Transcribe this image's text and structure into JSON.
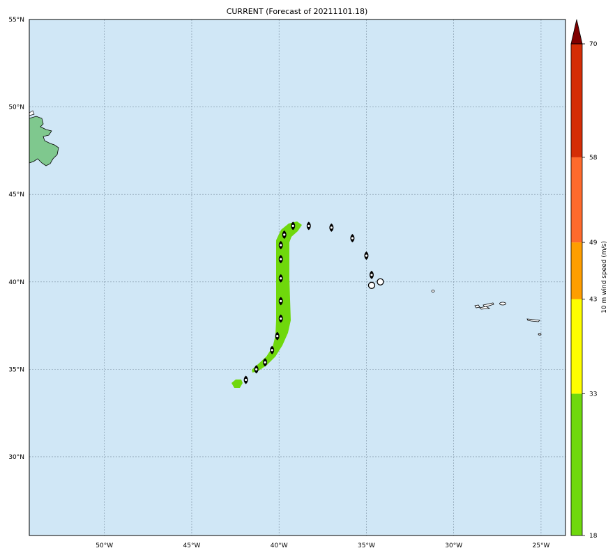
{
  "title": "CURRENT (Forecast of 20211101.18)",
  "colors": {
    "ocean": "#d0e7f6",
    "land": "#7fc88e",
    "swath": "#6fd80c",
    "grid": "#7a8fa0",
    "frame": "#000000"
  },
  "map": {
    "lon_range": [
      -54.3,
      -23.6
    ],
    "lat_range": [
      25.5,
      55
    ],
    "lon_ticks": [
      -50,
      -45,
      -40,
      -35,
      -30,
      -25
    ],
    "lat_ticks": [
      30,
      35,
      40,
      45,
      50,
      55
    ],
    "lon_tick_labels": [
      "50°W",
      "45°W",
      "40°W",
      "35°W",
      "30°W",
      "25°W"
    ],
    "lat_tick_labels": [
      "30°N",
      "35°N",
      "40°N",
      "45°N",
      "50°N",
      "55°N"
    ],
    "grid": true
  },
  "track": [
    {
      "lon": -41.9,
      "lat": 34.4,
      "symbol": "hurricane"
    },
    {
      "lon": -41.3,
      "lat": 35.0,
      "symbol": "hurricane"
    },
    {
      "lon": -40.8,
      "lat": 35.4,
      "symbol": "hurricane"
    },
    {
      "lon": -40.4,
      "lat": 36.1,
      "symbol": "hurricane"
    },
    {
      "lon": -40.1,
      "lat": 36.9,
      "symbol": "hurricane"
    },
    {
      "lon": -39.9,
      "lat": 37.9,
      "symbol": "hurricane"
    },
    {
      "lon": -39.9,
      "lat": 38.9,
      "symbol": "hurricane"
    },
    {
      "lon": -39.9,
      "lat": 40.2,
      "symbol": "hurricane"
    },
    {
      "lon": -39.9,
      "lat": 41.3,
      "symbol": "hurricane"
    },
    {
      "lon": -39.9,
      "lat": 42.1,
      "symbol": "hurricane"
    },
    {
      "lon": -39.7,
      "lat": 42.7,
      "symbol": "hurricane"
    },
    {
      "lon": -39.2,
      "lat": 43.2,
      "symbol": "hurricane"
    },
    {
      "lon": -38.3,
      "lat": 43.2,
      "symbol": "hurricane"
    },
    {
      "lon": -37.0,
      "lat": 43.1,
      "symbol": "hurricane"
    },
    {
      "lon": -35.8,
      "lat": 42.5,
      "symbol": "hurricane"
    },
    {
      "lon": -35.0,
      "lat": 41.5,
      "symbol": "hurricane"
    },
    {
      "lon": -34.7,
      "lat": 40.4,
      "symbol": "hurricane"
    },
    {
      "lon": -34.7,
      "lat": 39.8,
      "symbol": "low"
    },
    {
      "lon": -34.2,
      "lat": 40.0,
      "symbol": "low"
    }
  ],
  "colorbar": {
    "label": "10 m wind speed (m/s)",
    "bounds": [
      18,
      33,
      43,
      49,
      58,
      70
    ],
    "tick_labels": [
      "18",
      "33",
      "43",
      "49",
      "58",
      "70"
    ],
    "colors": [
      "#6fd80c",
      "#ffff00",
      "#ff9e00",
      "#ff6a2c",
      "#d42d06"
    ],
    "extend_color": "#800000"
  }
}
